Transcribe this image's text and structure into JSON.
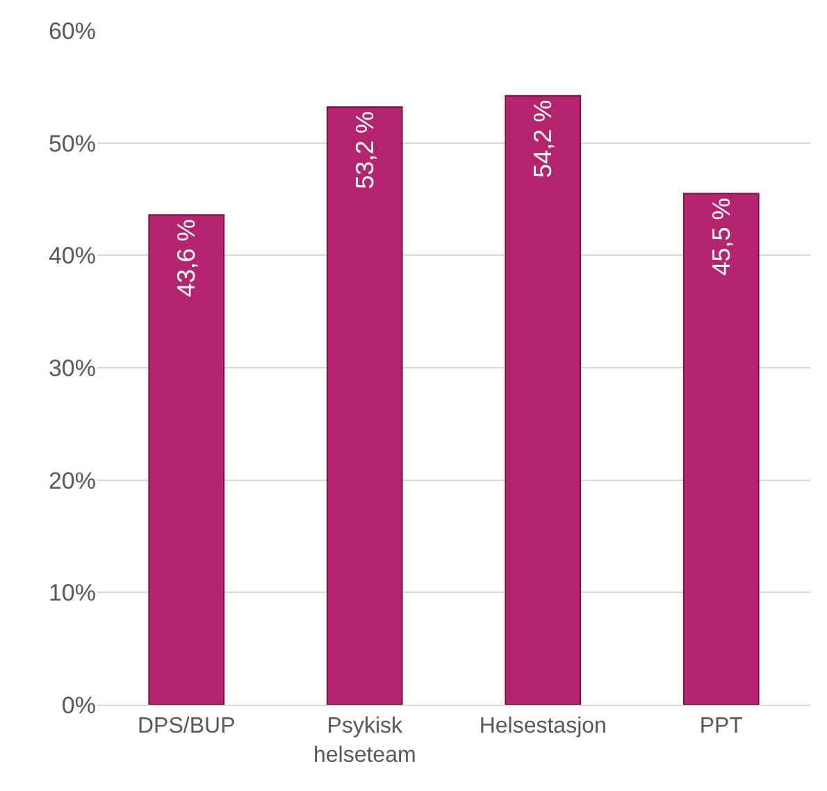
{
  "chart_data": {
    "type": "bar",
    "categories": [
      "DPS/BUP",
      "Psykisk helseteam",
      "Helsestasjon",
      "PPT"
    ],
    "values": [
      43.6,
      53.2,
      54.2,
      45.5
    ],
    "value_labels": [
      "43,6 %",
      "53,2 %",
      "54,2 %",
      "45,5 %"
    ],
    "color": "#b5246e",
    "ylim": [
      0,
      60
    ],
    "yticks": [
      {
        "value": 0,
        "label": "0%"
      },
      {
        "value": 10,
        "label": "10%"
      },
      {
        "value": 20,
        "label": "20%"
      },
      {
        "value": 30,
        "label": "30%"
      },
      {
        "value": 40,
        "label": "40%"
      },
      {
        "value": 50,
        "label": "50%"
      },
      {
        "value": 60,
        "label": "60%"
      }
    ],
    "grid": "y"
  }
}
